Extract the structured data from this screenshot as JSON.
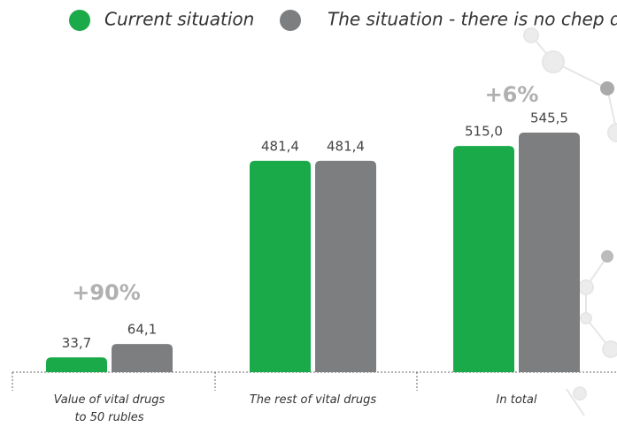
{
  "chart_data": {
    "type": "bar",
    "categories": [
      "Value of vital drugs to 50 rubles",
      "The rest of vital drugs",
      "In total"
    ],
    "series": [
      {
        "name": "Current situation",
        "color": "#1aaa4a",
        "values": [
          33.7,
          481.4,
          515.0
        ],
        "value_labels": [
          "33,7",
          "481,4",
          "515,0"
        ]
      },
      {
        "name": "The situation - there is no chep drugs",
        "color": "#7d7e80",
        "values": [
          64.1,
          481.4,
          545.5
        ],
        "value_labels": [
          "64,1",
          "481,4",
          "545,5"
        ]
      }
    ],
    "annotations": [
      "+90%",
      "+6%"
    ]
  }
}
